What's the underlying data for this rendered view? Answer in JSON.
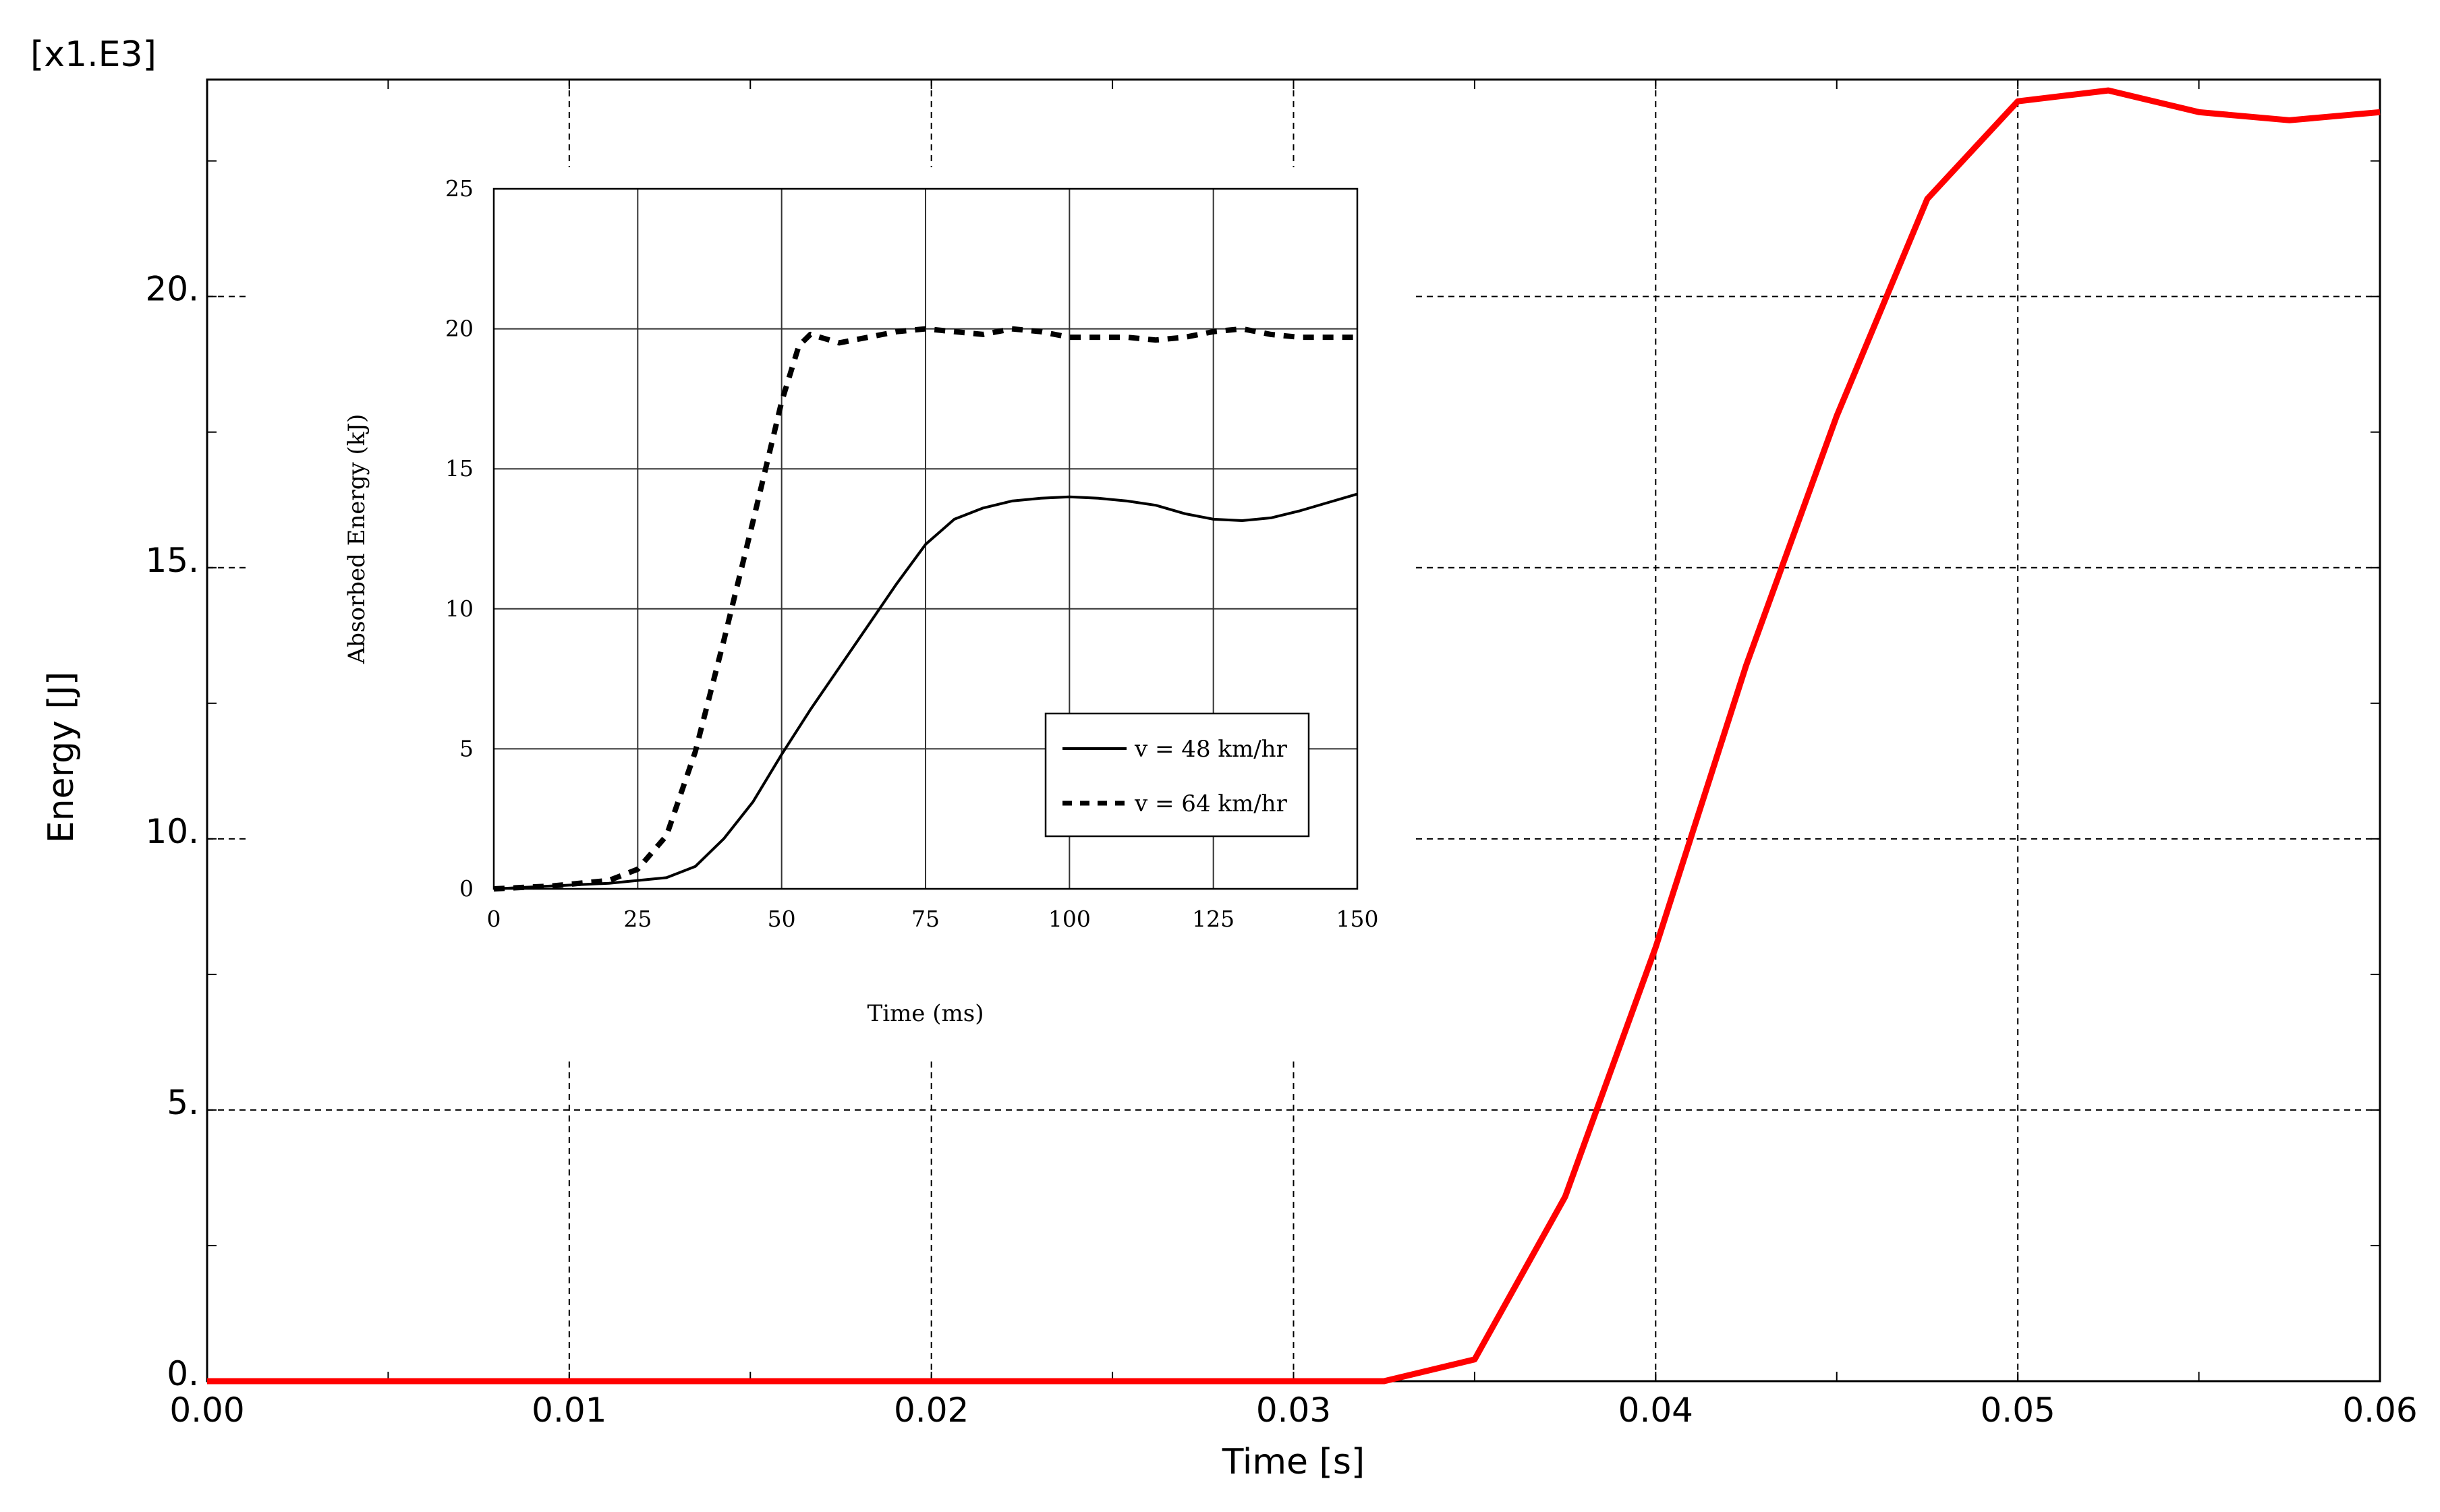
{
  "chart_data": [
    {
      "type": "line",
      "title": "",
      "xlabel": "Time [s]",
      "ylabel": "Energy [J]",
      "y_multiplier_label": "[x1.E3]",
      "xlim": [
        0,
        0.06
      ],
      "ylim": [
        0,
        24
      ],
      "grid": true,
      "x_ticks": [
        0,
        0.01,
        0.02,
        0.03,
        0.04,
        0.05,
        0.06
      ],
      "x_tick_labels": [
        "0.00",
        "0.01",
        "0.02",
        "0.03",
        "0.04",
        "0.05",
        "0.06"
      ],
      "y_ticks": [
        0,
        5,
        10,
        15,
        20
      ],
      "y_tick_labels": [
        "0.",
        "5.",
        "10.",
        "15.",
        "20."
      ],
      "series": [
        {
          "color": "#ff0000",
          "x": [
            0,
            0.0325,
            0.035,
            0.0375,
            0.04,
            0.0425,
            0.045,
            0.0475,
            0.05,
            0.0525,
            0.055,
            0.0575,
            0.06
          ],
          "y": [
            0,
            0,
            0.4,
            3.4,
            8.0,
            13.2,
            17.8,
            21.8,
            23.6,
            23.8,
            23.4,
            23.25,
            23.4
          ]
        }
      ]
    },
    {
      "type": "line",
      "title": "",
      "xlabel": "Time (ms)",
      "ylabel": "Absorbed Energy (kJ)",
      "xlim": [
        0,
        150
      ],
      "ylim": [
        0,
        25
      ],
      "grid": true,
      "x_ticks": [
        0,
        25,
        50,
        75,
        100,
        125,
        150
      ],
      "x_tick_labels": [
        "0",
        "25",
        "50",
        "75",
        "100",
        "125",
        "150"
      ],
      "y_ticks": [
        0,
        5,
        10,
        15,
        20,
        25
      ],
      "y_tick_labels": [
        "0",
        "5",
        "10",
        "15",
        "20",
        "25"
      ],
      "legend": "bottom-right",
      "series": [
        {
          "name": "v = 48 km/hr",
          "style": "solid",
          "color": "#000000",
          "x": [
            0,
            10,
            20,
            30,
            35,
            40,
            45,
            50,
            55,
            60,
            65,
            70,
            75,
            80,
            85,
            90,
            95,
            100,
            105,
            110,
            115,
            120,
            125,
            130,
            135,
            140,
            145,
            150
          ],
          "y": [
            0,
            0.1,
            0.2,
            0.4,
            0.8,
            1.8,
            3.1,
            4.8,
            6.4,
            7.9,
            9.4,
            10.9,
            12.3,
            13.2,
            13.6,
            13.85,
            13.95,
            14.0,
            13.95,
            13.85,
            13.7,
            13.4,
            13.2,
            13.15,
            13.25,
            13.5,
            13.8,
            14.1
          ]
        },
        {
          "name": "v = 64 km/hr",
          "style": "dashed",
          "color": "#000000",
          "x": [
            0,
            10,
            20,
            25,
            30,
            35,
            40,
            45,
            50,
            53,
            55,
            60,
            65,
            70,
            75,
            80,
            85,
            90,
            95,
            100,
            105,
            110,
            115,
            120,
            125,
            130,
            135,
            140,
            145,
            150
          ],
          "y": [
            0,
            0.1,
            0.3,
            0.7,
            1.9,
            4.9,
            8.9,
            13.1,
            17.4,
            19.4,
            19.8,
            19.5,
            19.7,
            19.9,
            20.0,
            19.9,
            19.8,
            20.0,
            19.9,
            19.7,
            19.7,
            19.7,
            19.6,
            19.7,
            19.9,
            20.0,
            19.8,
            19.7,
            19.7,
            19.7
          ]
        }
      ]
    }
  ]
}
